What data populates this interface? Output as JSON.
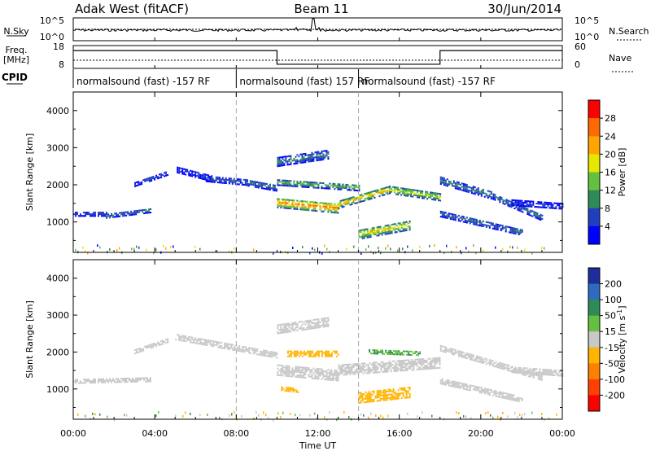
{
  "header": {
    "station": "Adak West (fitACF)",
    "beam": "Beam 11",
    "date": "30/Jun/2014"
  },
  "noise_panel": {
    "left_label": "N.Sky",
    "right_label": "N.Search",
    "left_ticks": [
      "10^5",
      "10^0"
    ],
    "right_ticks": [
      "10^5",
      "10^0"
    ]
  },
  "freq_panel": {
    "left_label_1": "Freq.",
    "left_label_2": "[MHz]",
    "right_label": "Nave",
    "left_ticks": [
      "18",
      "8"
    ],
    "right_ticks": [
      "60",
      "0"
    ],
    "freq_steps": [
      {
        "t_start": 0,
        "t_end": 10,
        "level": 0.78
      },
      {
        "t_start": 10,
        "t_end": 18,
        "level": 0.18
      },
      {
        "t_start": 18,
        "t_end": 24,
        "level": 0.78
      }
    ]
  },
  "cpid": {
    "label": "CPID",
    "segments": [
      {
        "t_start": 0,
        "text": "normalsound (fast) -157 RF"
      },
      {
        "t_start": 8,
        "text": "normalsound (fast) 157 RF"
      },
      {
        "t_start": 14,
        "text": "normalsound (fast) -157 RF"
      }
    ]
  },
  "chart_data": [
    {
      "type": "heatmap",
      "title": "Power",
      "xlabel": "Time UT",
      "ylabel": "Slant Range [km]",
      "xlim": [
        0,
        24
      ],
      "ylim": [
        180,
        4500
      ],
      "x_ticks": [
        "00:00",
        "04:00",
        "08:00",
        "12:00",
        "16:00",
        "20:00",
        "00:00"
      ],
      "y_ticks": [
        1000,
        2000,
        3000,
        4000
      ],
      "colorbar": {
        "label": "Power [dB]",
        "ticks": [
          4,
          8,
          12,
          16,
          20,
          24,
          28
        ],
        "range": [
          0,
          30
        ],
        "colors": [
          "#0000ff",
          "#1f3fbf",
          "#2e8b57",
          "#66c040",
          "#e6e600",
          "#ffa500",
          "#ff6a00",
          "#ff0000"
        ]
      },
      "bands": [
        {
          "t_start": 0,
          "t_end": 1.6,
          "r_start": 1200,
          "r_end": 1200,
          "width": 120,
          "power": 7
        },
        {
          "t_start": 1.6,
          "t_end": 3.8,
          "r_start": 1150,
          "r_end": 1300,
          "width": 130,
          "power": 9
        },
        {
          "t_start": 3.0,
          "t_end": 4.6,
          "r_start": 2000,
          "r_end": 2300,
          "width": 120,
          "power": 6
        },
        {
          "t_start": 5.0,
          "t_end": 6.8,
          "r_start": 2400,
          "r_end": 2150,
          "width": 160,
          "power": 6
        },
        {
          "t_start": 6.5,
          "t_end": 8.5,
          "r_start": 2150,
          "r_end": 2050,
          "width": 160,
          "power": 7
        },
        {
          "t_start": 8.5,
          "t_end": 10.0,
          "r_start": 2050,
          "r_end": 1900,
          "width": 180,
          "power": 9
        },
        {
          "t_start": 10.0,
          "t_end": 12.5,
          "r_start": 2600,
          "r_end": 2800,
          "width": 240,
          "power": 10
        },
        {
          "t_start": 10.0,
          "t_end": 14.0,
          "r_start": 2050,
          "r_end": 1900,
          "width": 160,
          "power": 14
        },
        {
          "t_start": 10.0,
          "t_end": 13.0,
          "r_start": 1500,
          "r_end": 1350,
          "width": 260,
          "power": 26
        },
        {
          "t_start": 13.0,
          "t_end": 15.5,
          "r_start": 1450,
          "r_end": 1850,
          "width": 200,
          "power": 22
        },
        {
          "t_start": 15.5,
          "t_end": 18.0,
          "r_start": 1850,
          "r_end": 1650,
          "width": 200,
          "power": 18
        },
        {
          "t_start": 14.0,
          "t_end": 16.5,
          "r_start": 650,
          "r_end": 900,
          "width": 260,
          "power": 20
        },
        {
          "t_start": 18.0,
          "t_end": 20.5,
          "r_start": 2100,
          "r_end": 1700,
          "width": 200,
          "power": 10
        },
        {
          "t_start": 20.5,
          "t_end": 23.0,
          "r_start": 1700,
          "r_end": 1100,
          "width": 180,
          "power": 9
        },
        {
          "t_start": 18.0,
          "t_end": 22.0,
          "r_start": 1200,
          "r_end": 700,
          "width": 160,
          "power": 9
        },
        {
          "t_start": 21.5,
          "t_end": 24.0,
          "r_start": 1500,
          "r_end": 1400,
          "width": 140,
          "power": 6
        }
      ]
    },
    {
      "type": "heatmap",
      "title": "Velocity",
      "xlabel": "Time UT",
      "ylabel": "Slant Range [km]",
      "xlim": [
        0,
        24
      ],
      "ylim": [
        180,
        4500
      ],
      "x_ticks": [
        "00:00",
        "04:00",
        "08:00",
        "12:00",
        "16:00",
        "20:00",
        "00:00"
      ],
      "y_ticks": [
        1000,
        2000,
        3000,
        4000
      ],
      "colorbar": {
        "label": "Velocity [m s^-1]",
        "ticks": [
          200,
          100,
          50,
          15,
          -15,
          -50,
          -100,
          -200
        ],
        "colors": [
          "#1e2d9b",
          "#2e6bbf",
          "#2e8b57",
          "#66c040",
          "#c8c8c8",
          "#ffb400",
          "#ff8000",
          "#ff4000",
          "#ff0000"
        ]
      },
      "bands": [
        {
          "t_start": 0,
          "t_end": 3.8,
          "r_start": 1200,
          "r_end": 1250,
          "width": 130,
          "vel": 0
        },
        {
          "t_start": 3.0,
          "t_end": 4.6,
          "r_start": 2000,
          "r_end": 2300,
          "width": 120,
          "vel": 0
        },
        {
          "t_start": 5.0,
          "t_end": 10.0,
          "r_start": 2400,
          "r_end": 1900,
          "width": 170,
          "vel": 0
        },
        {
          "t_start": 10.0,
          "t_end": 12.5,
          "r_start": 2600,
          "r_end": 2800,
          "width": 240,
          "vel": 0
        },
        {
          "t_start": 10.0,
          "t_end": 13.0,
          "r_start": 1500,
          "r_end": 1350,
          "width": 300,
          "vel": 0
        },
        {
          "t_start": 10.5,
          "t_end": 13.0,
          "r_start": 1950,
          "r_end": 1950,
          "width": 180,
          "vel": -40
        },
        {
          "t_start": 13.0,
          "t_end": 18.0,
          "r_start": 1500,
          "r_end": 1700,
          "width": 300,
          "vel": 0
        },
        {
          "t_start": 14.5,
          "t_end": 17.0,
          "r_start": 2000,
          "r_end": 1950,
          "width": 120,
          "vel": 30
        },
        {
          "t_start": 14.0,
          "t_end": 16.5,
          "r_start": 750,
          "r_end": 900,
          "width": 300,
          "vel": -40
        },
        {
          "t_start": 10.2,
          "t_end": 11.0,
          "r_start": 1000,
          "r_end": 950,
          "width": 120,
          "vel": -40
        },
        {
          "t_start": 18.0,
          "t_end": 23.0,
          "r_start": 2100,
          "r_end": 1300,
          "width": 180,
          "vel": 0
        },
        {
          "t_start": 18.0,
          "t_end": 22.0,
          "r_start": 1200,
          "r_end": 700,
          "width": 160,
          "vel": 0
        },
        {
          "t_start": 21.5,
          "t_end": 24.0,
          "r_start": 1500,
          "r_end": 1400,
          "width": 140,
          "vel": 0
        }
      ]
    }
  ]
}
